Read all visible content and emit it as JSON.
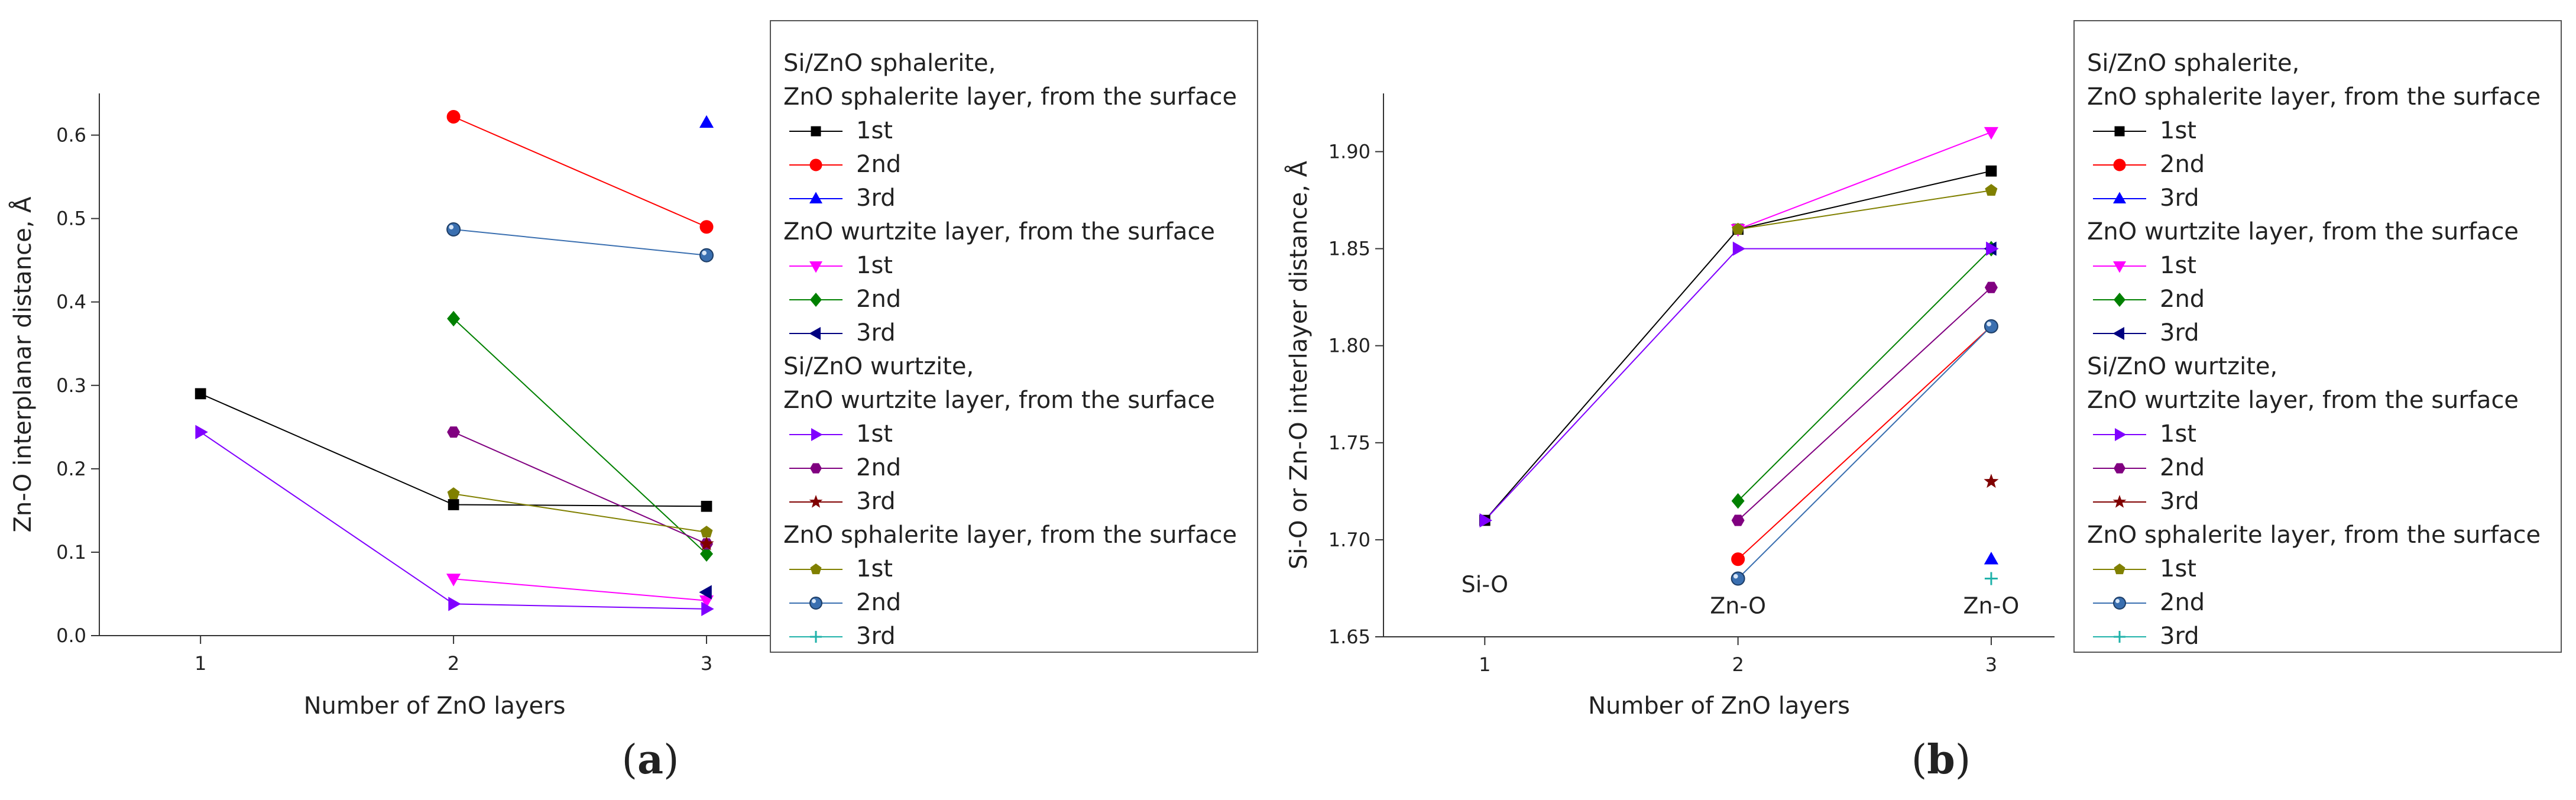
{
  "panels": [
    {
      "label_open": "(",
      "label_letter": "a",
      "label_close": ")",
      "legend_groups": [
        {
          "title_lines": [
            "Si/ZnO sphalerite,",
            "ZnO sphalerite layer, from the surface"
          ],
          "entries": [
            {
              "label": "1st",
              "color": "#000000",
              "marker": "square"
            },
            {
              "label": "2nd",
              "color": "#ff0000",
              "marker": "circle"
            },
            {
              "label": "3rd",
              "color": "#0000ff",
              "marker": "triangle-up"
            }
          ]
        },
        {
          "title_lines": [
            "ZnO wurtzite layer, from the surface"
          ],
          "entries": [
            {
              "label": "1st",
              "color": "#ff00ff",
              "marker": "triangle-down"
            },
            {
              "label": "2nd",
              "color": "#008000",
              "marker": "diamond"
            },
            {
              "label": "3rd",
              "color": "#000080",
              "marker": "triangle-left"
            }
          ]
        },
        {
          "title_lines": [
            "Si/ZnO wurtzite,",
            "ZnO wurtzite layer, from the surface"
          ],
          "entries": [
            {
              "label": "1st",
              "color": "#8000ff",
              "marker": "triangle-right"
            },
            {
              "label": "2nd",
              "color": "#800080",
              "marker": "hexagon"
            },
            {
              "label": "3rd",
              "color": "#800000",
              "marker": "star"
            }
          ]
        },
        {
          "title_lines": [
            "ZnO sphalerite layer, from the surface"
          ],
          "entries": [
            {
              "label": "1st",
              "color": "#808000",
              "marker": "pentagon"
            },
            {
              "label": "2nd",
              "color": "#3a6fb0",
              "marker": "ball"
            },
            {
              "label": "3rd",
              "color": "#20b2aa",
              "marker": "plus"
            }
          ]
        }
      ]
    },
    {
      "label_open": "(",
      "label_letter": "b",
      "label_close": ")",
      "legend_groups": [
        {
          "title_lines": [
            "Si/ZnO sphalerite,",
            "ZnO sphalerite layer, from the surface"
          ],
          "entries": [
            {
              "label": "1st",
              "color": "#000000",
              "marker": "square"
            },
            {
              "label": "2nd",
              "color": "#ff0000",
              "marker": "circle"
            },
            {
              "label": "3rd",
              "color": "#0000ff",
              "marker": "triangle-up"
            }
          ]
        },
        {
          "title_lines": [
            "ZnO wurtzite layer, from the surface"
          ],
          "entries": [
            {
              "label": "1st",
              "color": "#ff00ff",
              "marker": "triangle-down"
            },
            {
              "label": "2nd",
              "color": "#008000",
              "marker": "diamond"
            },
            {
              "label": "3rd",
              "color": "#000080",
              "marker": "triangle-left"
            }
          ]
        },
        {
          "title_lines": [
            "Si/ZnO wurtzite,",
            "ZnO wurtzite layer, from the surface"
          ],
          "entries": [
            {
              "label": "1st",
              "color": "#8000ff",
              "marker": "triangle-right"
            },
            {
              "label": "2nd",
              "color": "#800080",
              "marker": "hexagon"
            },
            {
              "label": "3rd",
              "color": "#800000",
              "marker": "star"
            }
          ]
        },
        {
          "title_lines": [
            "ZnO sphalerite layer, from the surface"
          ],
          "entries": [
            {
              "label": "1st",
              "color": "#808000",
              "marker": "pentagon"
            },
            {
              "label": "2nd",
              "color": "#3a6fb0",
              "marker": "ball"
            },
            {
              "label": "3rd",
              "color": "#20b2aa",
              "marker": "plus"
            }
          ]
        }
      ]
    }
  ],
  "chart_data": [
    {
      "type": "line",
      "xlabel": "Number of ZnO layers",
      "ylabel": "Zn-O interplanar distance, Å",
      "xlim": [
        0.6,
        3.25
      ],
      "ylim": [
        0,
        0.65
      ],
      "xticks": [
        1,
        2,
        3
      ],
      "yticks": [
        0.0,
        0.1,
        0.2,
        0.3,
        0.4,
        0.5,
        0.6
      ],
      "grid": false,
      "legend_position": "right",
      "annotations": [],
      "series": [
        {
          "name": "1st",
          "color": "#000000",
          "marker": "square",
          "points": [
            [
              1,
              0.29
            ],
            [
              2,
              0.157
            ],
            [
              3,
              0.155
            ]
          ]
        },
        {
          "name": "2nd",
          "color": "#ff0000",
          "marker": "circle",
          "points": [
            [
              2,
              0.622
            ],
            [
              3,
              0.49
            ]
          ]
        },
        {
          "name": "3rd",
          "color": "#0000ff",
          "marker": "triangle-up",
          "points": [
            [
              3,
              0.615
            ]
          ]
        },
        {
          "name": "1st",
          "color": "#ff00ff",
          "marker": "triangle-down",
          "points": [
            [
              2,
              0.068
            ],
            [
              3,
              0.042
            ]
          ]
        },
        {
          "name": "2nd",
          "color": "#008000",
          "marker": "diamond",
          "points": [
            [
              2,
              0.38
            ],
            [
              3,
              0.098
            ]
          ]
        },
        {
          "name": "3rd",
          "color": "#000080",
          "marker": "triangle-left",
          "points": [
            [
              3,
              0.052
            ]
          ]
        },
        {
          "name": "1st",
          "color": "#8000ff",
          "marker": "triangle-right",
          "points": [
            [
              1,
              0.244
            ],
            [
              2,
              0.038
            ],
            [
              3,
              0.032
            ]
          ]
        },
        {
          "name": "2nd",
          "color": "#800080",
          "marker": "hexagon",
          "points": [
            [
              2,
              0.244
            ],
            [
              3,
              0.11
            ]
          ]
        },
        {
          "name": "3rd",
          "color": "#800000",
          "marker": "star",
          "points": [
            [
              3,
              0.11
            ]
          ]
        },
        {
          "name": "1st",
          "color": "#808000",
          "marker": "pentagon",
          "points": [
            [
              2,
              0.17
            ],
            [
              3,
              0.124
            ]
          ]
        },
        {
          "name": "2nd",
          "color": "#3a6fb0",
          "marker": "ball",
          "points": [
            [
              2,
              0.487
            ],
            [
              3,
              0.456
            ]
          ]
        },
        {
          "name": "3rd",
          "color": "#20b2aa",
          "marker": "plus",
          "points": []
        }
      ]
    },
    {
      "type": "line",
      "xlabel": "Number of ZnO layers",
      "ylabel": "Si-O or Zn-O interlayer distance, Å",
      "xlim": [
        0.6,
        3.25
      ],
      "ylim": [
        1.65,
        1.93
      ],
      "xticks": [
        1,
        2,
        3
      ],
      "yticks": [
        1.65,
        1.7,
        1.75,
        1.8,
        1.85,
        1.9
      ],
      "grid": false,
      "legend_position": "right",
      "annotations": [
        {
          "text": "Si-O",
          "x": 1,
          "y": 1.673
        },
        {
          "text": "Zn-O",
          "x": 2,
          "y": 1.662
        },
        {
          "text": "Zn-O",
          "x": 3,
          "y": 1.662
        }
      ],
      "series": [
        {
          "name": "1st",
          "color": "#000000",
          "marker": "square",
          "points": [
            [
              1,
              1.71
            ],
            [
              2,
              1.86
            ],
            [
              3,
              1.89
            ]
          ]
        },
        {
          "name": "2nd",
          "color": "#ff0000",
          "marker": "circle",
          "points": [
            [
              2,
              1.69
            ],
            [
              3,
              1.81
            ]
          ]
        },
        {
          "name": "3rd",
          "color": "#0000ff",
          "marker": "triangle-up",
          "points": [
            [
              3,
              1.69
            ]
          ]
        },
        {
          "name": "1st",
          "color": "#ff00ff",
          "marker": "triangle-down",
          "points": [
            [
              2,
              1.86
            ],
            [
              3,
              1.91
            ]
          ]
        },
        {
          "name": "2nd",
          "color": "#008000",
          "marker": "diamond",
          "points": [
            [
              2,
              1.72
            ],
            [
              3,
              1.85
            ]
          ]
        },
        {
          "name": "3rd",
          "color": "#000080",
          "marker": "triangle-left",
          "points": [
            [
              3,
              1.85
            ]
          ]
        },
        {
          "name": "1st",
          "color": "#8000ff",
          "marker": "triangle-right",
          "points": [
            [
              1,
              1.71
            ],
            [
              2,
              1.85
            ],
            [
              3,
              1.85
            ]
          ]
        },
        {
          "name": "2nd",
          "color": "#800080",
          "marker": "hexagon",
          "points": [
            [
              2,
              1.71
            ],
            [
              3,
              1.83
            ]
          ]
        },
        {
          "name": "3rd",
          "color": "#800000",
          "marker": "star",
          "points": [
            [
              3,
              1.73
            ]
          ]
        },
        {
          "name": "1st",
          "color": "#808000",
          "marker": "pentagon",
          "points": [
            [
              2,
              1.86
            ],
            [
              3,
              1.88
            ]
          ]
        },
        {
          "name": "2nd",
          "color": "#3a6fb0",
          "marker": "ball",
          "points": [
            [
              2,
              1.68
            ],
            [
              3,
              1.81
            ]
          ]
        },
        {
          "name": "3rd",
          "color": "#20b2aa",
          "marker": "plus",
          "points": [
            [
              3,
              1.68
            ]
          ]
        }
      ]
    }
  ]
}
